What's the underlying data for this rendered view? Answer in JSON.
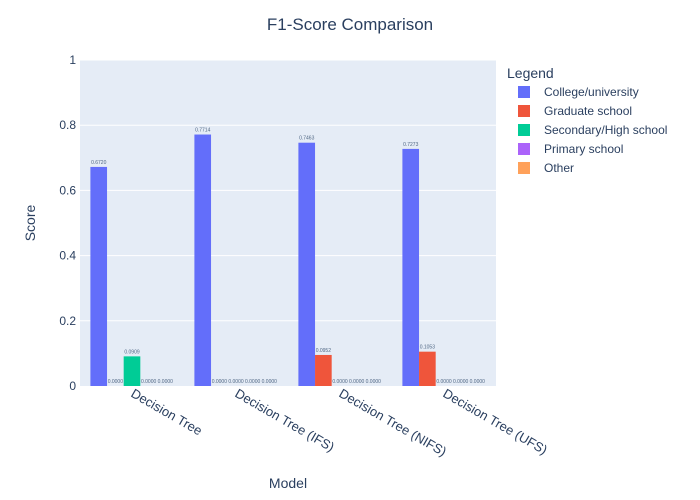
{
  "chart_data": {
    "type": "bar",
    "title": "F1-Score Comparison",
    "xlabel": "Model",
    "ylabel": "Score",
    "ylim": [
      0,
      1
    ],
    "yticks": [
      "0",
      "0.2",
      "0.4",
      "0.6",
      "0.8",
      "1"
    ],
    "ytick_values": [
      0,
      0.2,
      0.4,
      0.6,
      0.8,
      1
    ],
    "grid": true,
    "legend_title": "Legend",
    "legend_position": "top-right",
    "categories": [
      "Decision Tree",
      "Decision Tree (IFS)",
      "Decision Tree (NIFS)",
      "Decision Tree (UFS)"
    ],
    "series": [
      {
        "name": "College/university",
        "color": "#636efa",
        "values": [
          0.672,
          0.7714,
          0.7463,
          0.7273
        ],
        "labels": [
          "0.6720",
          "0.7714",
          "0.7463",
          "0.7273"
        ]
      },
      {
        "name": "Graduate school",
        "color": "#ef553b",
        "values": [
          0,
          0,
          0.0952,
          0.1053
        ],
        "labels": [
          "0.0000",
          "0.0000",
          "0.0952",
          "0.1053"
        ]
      },
      {
        "name": "Secondary/High school",
        "color": "#00cc96",
        "values": [
          0.0909,
          0,
          0,
          0
        ],
        "labels": [
          "0.0909",
          "0.0000",
          "0.0000",
          "0.0000"
        ]
      },
      {
        "name": "Primary school",
        "color": "#ab63fa",
        "values": [
          0,
          0,
          0,
          0
        ],
        "labels": [
          "0.0000",
          "0.0000",
          "0.0000",
          "0.0000"
        ]
      },
      {
        "name": "Other",
        "color": "#ffa15a",
        "values": [
          0,
          0,
          0,
          0
        ],
        "labels": [
          "0.0000",
          "0.0000",
          "0.0000",
          "0.0000"
        ]
      }
    ]
  }
}
